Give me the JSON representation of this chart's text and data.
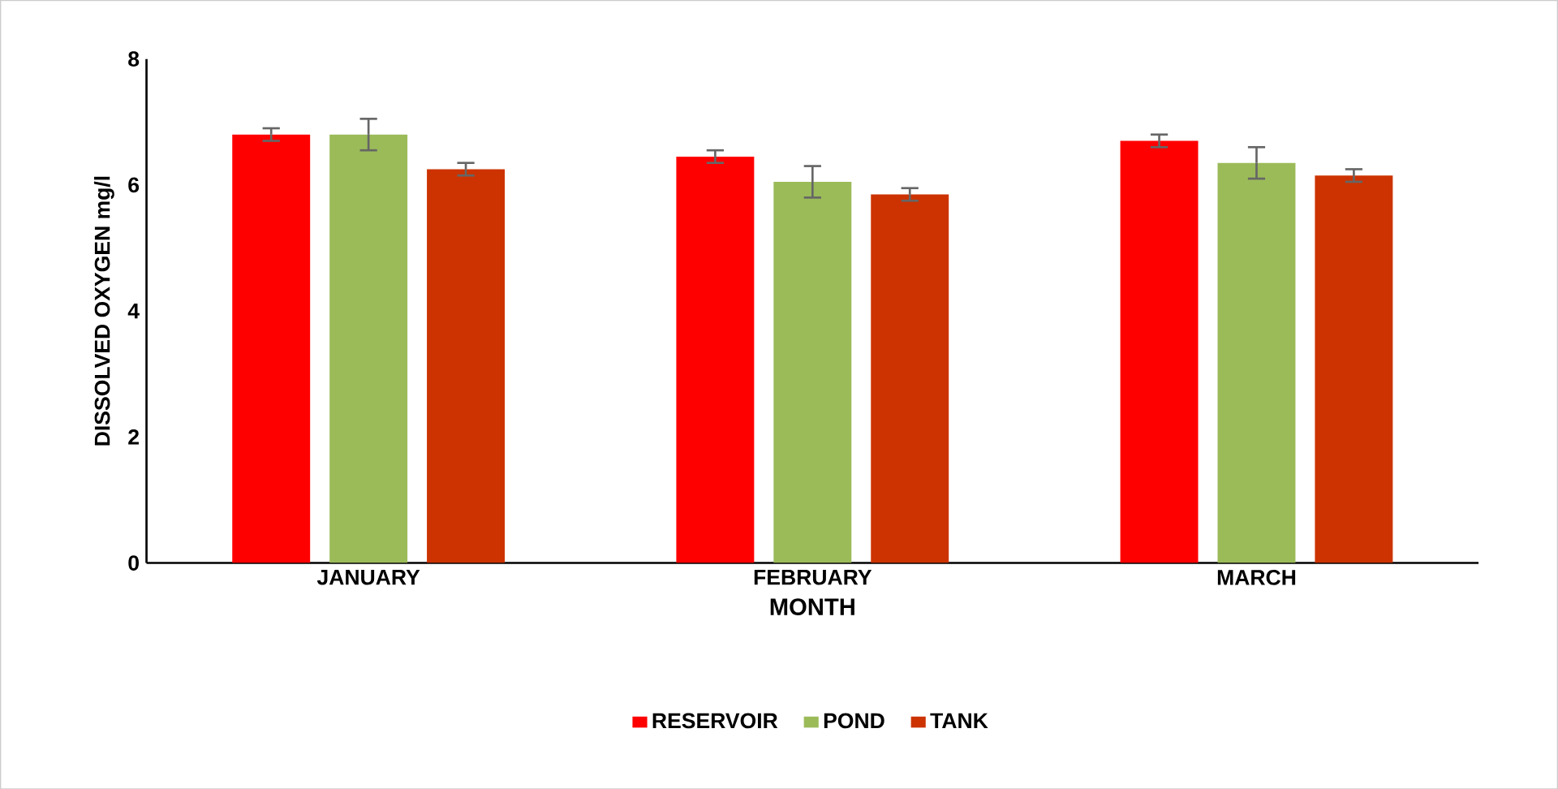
{
  "chart_data": {
    "type": "bar",
    "xlabel": "MONTH",
    "ylabel": "DISSOLVED OXYGEN mg/l",
    "categories": [
      "JANUARY",
      "FEBRUARY",
      "MARCH"
    ],
    "series": [
      {
        "name": "RESERVOIR",
        "color": "#ff0000",
        "values": [
          6.8,
          6.45,
          6.7
        ],
        "errors": [
          0.1,
          0.1,
          0.1
        ]
      },
      {
        "name": "POND",
        "color": "#9bbb59",
        "values": [
          6.8,
          6.05,
          6.35
        ],
        "errors": [
          0.25,
          0.25,
          0.25
        ]
      },
      {
        "name": "TANK",
        "color": "#cc3300",
        "values": [
          6.25,
          5.85,
          6.15
        ],
        "errors": [
          0.1,
          0.1,
          0.1
        ]
      }
    ],
    "ylim": [
      0,
      8
    ],
    "yticks": [
      0,
      2,
      4,
      6,
      8
    ],
    "grid": false,
    "legend": "bottom"
  }
}
